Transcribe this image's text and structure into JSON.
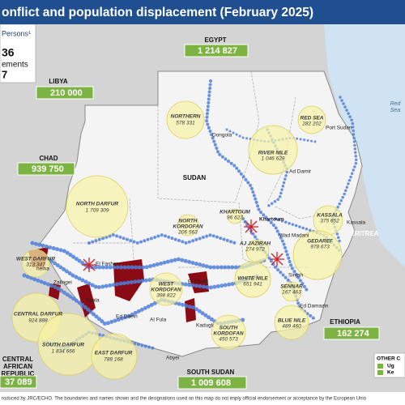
{
  "header": {
    "title": "onflict and population displacement (February 2025)"
  },
  "side_panel": {
    "line1": "Persons¹",
    "line2": "36",
    "line3": "ements",
    "line4": "7"
  },
  "countries": {
    "egypt": {
      "name": "EGYPT",
      "value": "1 214 827"
    },
    "libya": {
      "name": "LIBYA",
      "value": "210 000"
    },
    "chad": {
      "name": "CHAD",
      "value": "939 750"
    },
    "ethiopia": {
      "name": "ETHIOPIA",
      "value": "162 274"
    },
    "south_sudan": {
      "name": "SOUTH SUDAN",
      "value": "1 009 608"
    },
    "car": {
      "name1": "CENTRAL",
      "name2": "AFRICAN",
      "name3": "REPUBLIC",
      "value": "37 089"
    },
    "eritrea": "ERITREA",
    "sudan": "SUDAN",
    "sea1": "Red",
    "sea2": "Sea"
  },
  "states": [
    {
      "name": "NORTHERN",
      "value": "578 331"
    },
    {
      "name": "RED SEA",
      "value": "282 202"
    },
    {
      "name": "RIVER NILE",
      "value": "1 046 629"
    },
    {
      "name": "NORTH DARFUR",
      "value": "1 709 309"
    },
    {
      "name": "NORTH",
      "name2": "KORDOFAN",
      "value": "206 563"
    },
    {
      "name": "KHARTOUM",
      "value": "96 627"
    },
    {
      "name": "KASSALA",
      "value": "375 652"
    },
    {
      "name": "AJ JAZIRAH",
      "value": "274 972"
    },
    {
      "name": "GEDAREF",
      "value": "978 673"
    },
    {
      "name": "WEST DARFUR",
      "value": "313 347"
    },
    {
      "name": "WHITE NILE",
      "value": "651 941"
    },
    {
      "name": "SENNAR",
      "value": "167 463"
    },
    {
      "name": "WEST",
      "name2": "KORDOFAN",
      "value": "398 822"
    },
    {
      "name": "CENTRAL DARFUR",
      "value": "924 888"
    },
    {
      "name": "BLUE NILE",
      "value": "489 460"
    },
    {
      "name": "SOUTH DARFUR",
      "value": "1 834 666"
    },
    {
      "name": "EAST DARFUR",
      "value": "788 168"
    },
    {
      "name": "SOUTH",
      "name2": "KORDOFAN",
      "value": "450 573"
    }
  ],
  "cities": [
    "Dongola",
    "Port Sudan",
    "Ad Damir",
    "Khartoum",
    "Kassala",
    "Wad Madani",
    "Sinjah",
    "Ed Damazin",
    "El Fasher",
    "Zalingei",
    "Nyala",
    "Ed Daein",
    "Al Fula",
    "El Obeid",
    "Kadugli",
    "Abyei",
    "neina"
  ],
  "legend": {
    "title": "OTHER C",
    "item1": "Ug",
    "item2": "Ke"
  },
  "footer": "roduced by JRC/ECHO. The boundaries and names shown and the designations used on this map do not imply official endorsement or acceptance by the European Unio"
}
